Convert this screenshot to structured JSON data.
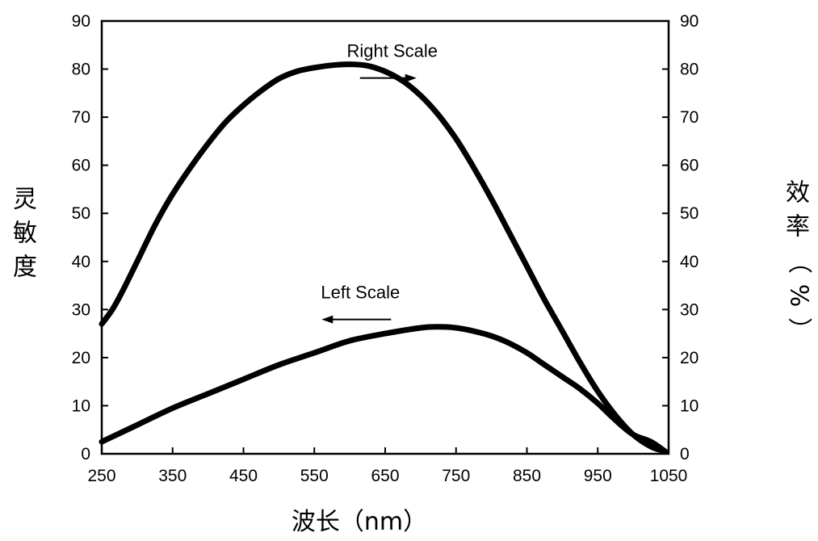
{
  "chart_data": {
    "type": "line",
    "title": "",
    "xlabel": "波长（nm）",
    "ylabel_left": "灵敏度",
    "ylabel_right": "效率（%）",
    "xlim": [
      250,
      1050
    ],
    "ylim": [
      0,
      90
    ],
    "x_ticks": [
      250,
      350,
      450,
      550,
      650,
      750,
      850,
      950,
      1050
    ],
    "y_ticks": [
      0,
      10,
      20,
      30,
      40,
      50,
      60,
      70,
      80,
      90
    ],
    "grid": false,
    "series": [
      {
        "axis": "right",
        "x": [
          250,
          265,
          280,
          300,
          325,
          350,
          375,
          400,
          425,
          450,
          475,
          500,
          525,
          550,
          575,
          600,
          625,
          650,
          675,
          700,
          725,
          750,
          775,
          800,
          825,
          850,
          875,
          900,
          925,
          950,
          975,
          1000,
          1025,
          1045
        ],
        "values": [
          27,
          30,
          34,
          40,
          47.5,
          54,
          59.5,
          64.5,
          69,
          72.5,
          75.5,
          78,
          79.5,
          80.3,
          80.8,
          81,
          80.7,
          79.5,
          77.5,
          74.5,
          70.5,
          65.5,
          59.5,
          53,
          46,
          39,
          32,
          25.5,
          19,
          13,
          8,
          4,
          1.5,
          0.5
        ]
      },
      {
        "axis": "left",
        "x": [
          250,
          300,
          350,
          400,
          450,
          500,
          550,
          600,
          650,
          700,
          725,
          750,
          775,
          800,
          825,
          850,
          875,
          900,
          925,
          950,
          975,
          1000,
          1025,
          1045
        ],
        "values": [
          2.5,
          6,
          9.5,
          12.5,
          15.5,
          18.5,
          21,
          23.5,
          25,
          26.2,
          26.4,
          26.2,
          25.5,
          24.5,
          23,
          21,
          18.5,
          16,
          13.5,
          10.5,
          7,
          4,
          2.5,
          0.5
        ]
      }
    ],
    "annotations": [
      {
        "text": "Right Scale",
        "arrow": "right",
        "x": 660,
        "y": 82.5
      },
      {
        "text": "Left Scale",
        "arrow": "left",
        "x": 615,
        "y": 32.3
      }
    ]
  }
}
